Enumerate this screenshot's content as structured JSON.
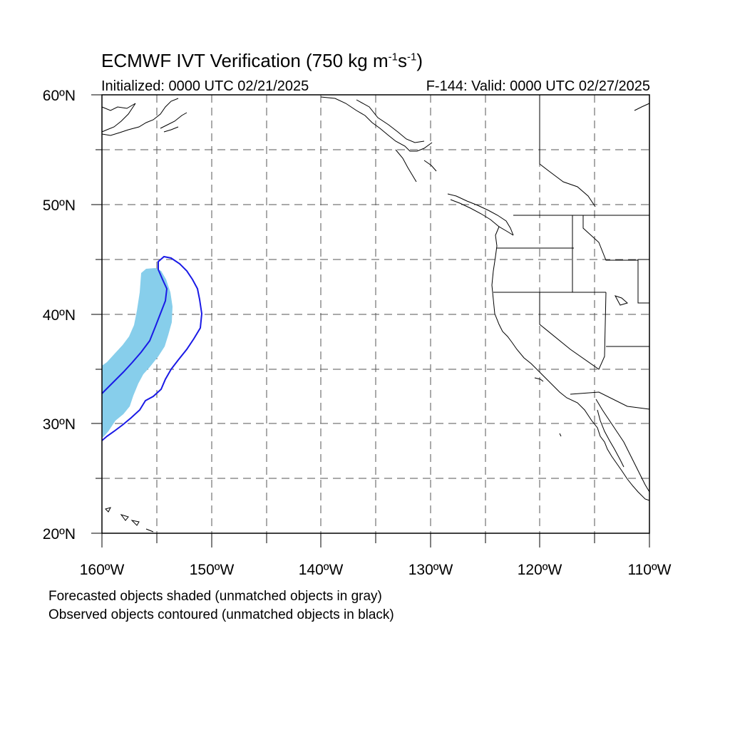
{
  "title": {
    "main": "ECMWF IVT Verification (750 kg m",
    "sup1": "-1",
    "mid": "s",
    "sup2": "-1",
    "end": ")"
  },
  "initialized": "Initialized: 0000 UTC 02/21/2025",
  "valid": "F-144: Valid: 0000 UTC 02/27/2025",
  "lat_labels": [
    "60ºN",
    "50ºN",
    "40ºN",
    "30ºN",
    "20ºN"
  ],
  "lon_labels": [
    "160ºW",
    "150ºW",
    "140ºW",
    "130ºW",
    "120ºW",
    "110ºW"
  ],
  "footer": {
    "line1": "Forecasted objects shaded (unmatched objects in gray)",
    "line2": "Observed objects contoured (unmatched objects in black)"
  },
  "map_extent": {
    "lon": [
      -160,
      -110
    ],
    "lat": [
      20,
      60
    ]
  },
  "colors": {
    "forecast_fill": "#87ceeb",
    "observed_contour": "#1a1ae6",
    "coast": "#000000",
    "grid": "#555555"
  }
}
